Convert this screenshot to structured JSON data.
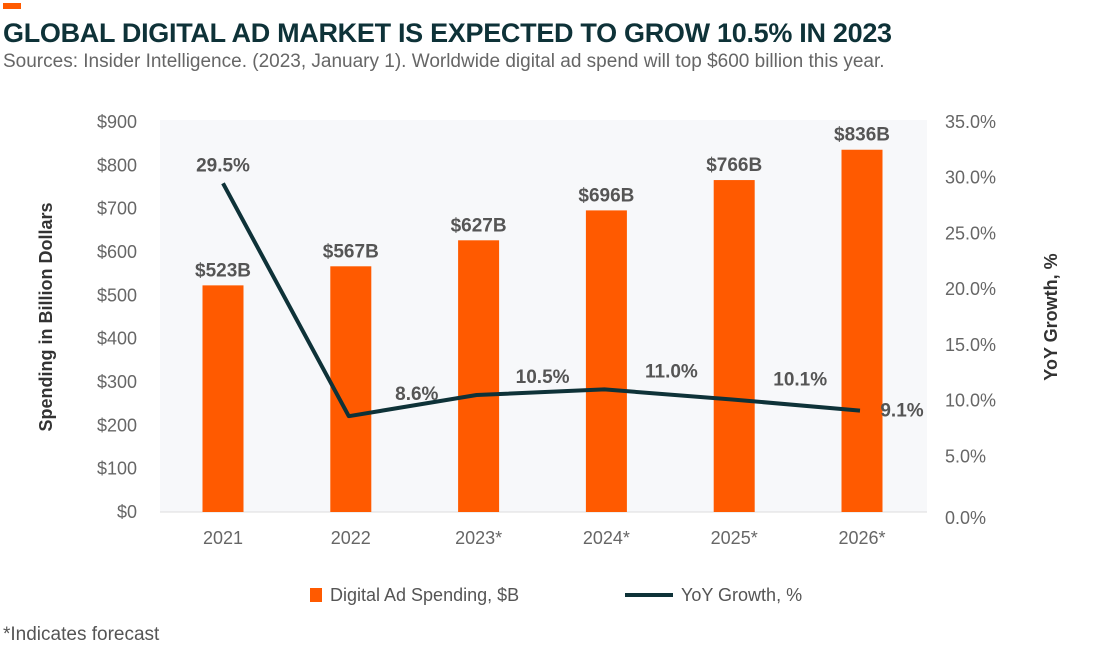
{
  "title": "GLOBAL DIGITAL AD MARKET IS EXPECTED TO GROW 10.5% IN 2023",
  "subtitle": "Sources: Insider Intelligence. (2023, January 1). Worldwide digital ad spend will top $600 billion this year.",
  "footnote": "*Indicates forecast",
  "colors": {
    "bar": "#ff5a00",
    "line": "#0e3238",
    "plot_bg": "#f7f8fa"
  },
  "chart_data": {
    "type": "bar+line",
    "categories": [
      "2021",
      "2022",
      "2023*",
      "2024*",
      "2025*",
      "2026*"
    ],
    "series": [
      {
        "name": "Digital Ad Spending, $B",
        "type": "bar",
        "axis": "left",
        "values": [
          523,
          567,
          627,
          696,
          766,
          836
        ],
        "labels": [
          "$523B",
          "$567B",
          "$627B",
          "$696B",
          "$766B",
          "$836B"
        ]
      },
      {
        "name": "YoY Growth, %",
        "type": "line",
        "axis": "right",
        "values": [
          29.5,
          8.6,
          10.5,
          11.0,
          10.1,
          9.1
        ],
        "labels": [
          "29.5%",
          "8.6%",
          "10.5%",
          "11.0%",
          "10.1%",
          "9.1%"
        ]
      }
    ],
    "ylabel": "Spending in Billion Dollars",
    "y2label": "YoY Growth, %",
    "ylim": [
      0,
      900
    ],
    "y2lim": [
      0,
      35
    ],
    "yticks": [
      "$0",
      "$100",
      "$200",
      "$300",
      "$400",
      "$500",
      "$600",
      "$700",
      "$800",
      "$900"
    ],
    "y2ticks": [
      "0.0%",
      "5.0%",
      "10.0%",
      "15.0%",
      "20.0%",
      "25.0%",
      "30.0%",
      "35.0%"
    ],
    "legend": "bottom",
    "grid": false
  }
}
